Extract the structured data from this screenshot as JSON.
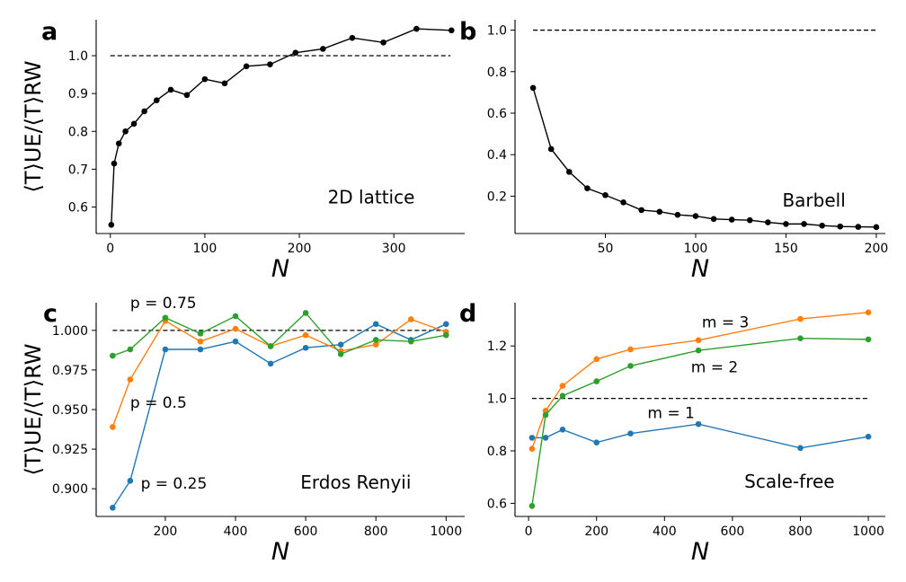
{
  "chart_data": [
    {
      "panel": "a",
      "type": "line",
      "xlabel": "N",
      "ylabel": "⟨T⟩UE/⟨T⟩RW",
      "xlim": [
        -15,
        375
      ],
      "ylim": [
        0.53,
        1.095
      ],
      "xticks": [
        0,
        100,
        200,
        300
      ],
      "yticks": [
        0.6,
        0.7,
        0.8,
        0.9,
        1.0
      ],
      "ytick_labels": [
        "0.6",
        "0.7",
        "0.8",
        "0.9",
        "1.0"
      ],
      "reference_line": {
        "y": 1.0,
        "x_range": [
          0,
          360
        ]
      },
      "annotations": [
        {
          "text": "2D lattice",
          "x": 230,
          "y": 0.61
        }
      ],
      "series": [
        {
          "color": "#000000",
          "x": [
            1,
            4,
            9,
            16,
            25,
            36,
            49,
            64,
            81,
            100,
            121,
            144,
            169,
            196,
            225,
            256,
            289,
            324,
            361
          ],
          "y": [
            0.553,
            0.715,
            0.768,
            0.8,
            0.82,
            0.853,
            0.882,
            0.91,
            0.896,
            0.938,
            0.927,
            0.972,
            0.977,
            1.008,
            1.018,
            1.047,
            1.035,
            1.071,
            1.067
          ]
        }
      ]
    },
    {
      "panel": "b",
      "type": "line",
      "xlabel": "N",
      "ylabel": "",
      "xlim": [
        0,
        205
      ],
      "ylim": [
        0.02,
        1.05
      ],
      "xticks": [
        50,
        100,
        150,
        200
      ],
      "yticks": [
        0.2,
        0.4,
        0.6,
        0.8,
        1.0
      ],
      "ytick_labels": [
        "0.2",
        "0.4",
        "0.6",
        "0.8",
        "1.0"
      ],
      "reference_line": {
        "y": 1.0,
        "x_range": [
          10,
          200
        ]
      },
      "annotations": [
        {
          "text": "Barbell",
          "x": 148,
          "y": 0.15
        }
      ],
      "series": [
        {
          "color": "#000000",
          "x": [
            10,
            20,
            30,
            40,
            50,
            60,
            70,
            80,
            90,
            100,
            110,
            120,
            130,
            140,
            150,
            160,
            170,
            180,
            190,
            200
          ],
          "y": [
            0.722,
            0.427,
            0.317,
            0.238,
            0.205,
            0.17,
            0.133,
            0.125,
            0.11,
            0.104,
            0.09,
            0.087,
            0.084,
            0.074,
            0.066,
            0.066,
            0.058,
            0.054,
            0.052,
            0.051
          ]
        }
      ]
    },
    {
      "panel": "c",
      "type": "line",
      "xlabel": "N",
      "ylabel": "⟨T⟩UE/⟨T⟩RW",
      "xlim": [
        3,
        1053
      ],
      "ylim": [
        0.8825,
        1.0175
      ],
      "xticks": [
        200,
        400,
        600,
        800,
        1000
      ],
      "yticks": [
        0.9,
        0.925,
        0.95,
        0.975,
        1.0
      ],
      "ytick_labels": [
        "0.900",
        "0.925",
        "0.950",
        "0.975",
        "1.000"
      ],
      "reference_line": {
        "y": 1.0,
        "x_range": [
          50,
          1000
        ]
      },
      "annotations": [
        {
          "text": "p = 0.75",
          "x": 100,
          "y": 1.014
        },
        {
          "text": "p = 0.5",
          "x": 100,
          "y": 0.951
        },
        {
          "text": "p = 0.25",
          "x": 130,
          "y": 0.9
        },
        {
          "text": "Erdos Renyii",
          "x": 585,
          "y": 0.9
        }
      ],
      "series": [
        {
          "color": "#1f77b4",
          "x": [
            50,
            100,
            200,
            300,
            400,
            500,
            600,
            700,
            800,
            900,
            1000
          ],
          "y": [
            0.888,
            0.905,
            0.988,
            0.988,
            0.993,
            0.979,
            0.989,
            0.991,
            1.004,
            0.994,
            1.004
          ]
        },
        {
          "color": "#ff7f0e",
          "x": [
            50,
            100,
            200,
            300,
            400,
            500,
            600,
            700,
            800,
            900,
            1000
          ],
          "y": [
            0.939,
            0.969,
            1.006,
            0.993,
            1.001,
            0.99,
            0.997,
            0.987,
            0.991,
            1.007,
            0.999
          ]
        },
        {
          "color": "#2ca02c",
          "x": [
            50,
            100,
            200,
            300,
            400,
            500,
            600,
            700,
            800,
            900,
            1000
          ],
          "y": [
            0.984,
            0.988,
            1.008,
            0.998,
            1.009,
            0.99,
            1.011,
            0.985,
            0.994,
            0.993,
            0.997
          ]
        }
      ]
    },
    {
      "panel": "d",
      "type": "line",
      "xlabel": "N",
      "ylabel": "",
      "xlim": [
        -40,
        1050
      ],
      "ylim": [
        0.55,
        1.365
      ],
      "xticks": [
        0,
        200,
        400,
        600,
        800,
        1000
      ],
      "yticks": [
        0.6,
        0.8,
        1.0,
        1.2
      ],
      "ytick_labels": [
        "0.6",
        "0.8",
        "1.0",
        "1.2"
      ],
      "reference_line": {
        "y": 1.0,
        "x_range": [
          10,
          1000
        ]
      },
      "annotations": [
        {
          "text": "m = 3",
          "x": 510,
          "y": 1.27
        },
        {
          "text": "m = 2",
          "x": 478,
          "y": 1.1
        },
        {
          "text": "m = 1",
          "x": 350,
          "y": 0.925
        },
        {
          "text": "Scale-free",
          "x": 635,
          "y": 0.66
        }
      ],
      "series": [
        {
          "color": "#1f77b4",
          "x": [
            10,
            50,
            100,
            200,
            300,
            500,
            800,
            1000
          ],
          "y": [
            0.85,
            0.85,
            0.881,
            0.832,
            0.866,
            0.902,
            0.811,
            0.854
          ]
        },
        {
          "color": "#ff7f0e",
          "x": [
            10,
            50,
            100,
            200,
            300,
            500,
            800,
            1000
          ],
          "y": [
            0.808,
            0.953,
            1.048,
            1.15,
            1.187,
            1.222,
            1.303,
            1.328
          ]
        },
        {
          "color": "#2ca02c",
          "x": [
            10,
            50,
            100,
            200,
            300,
            500,
            800,
            1000
          ],
          "y": [
            0.59,
            0.937,
            1.01,
            1.065,
            1.124,
            1.183,
            1.229,
            1.225
          ]
        }
      ]
    }
  ]
}
